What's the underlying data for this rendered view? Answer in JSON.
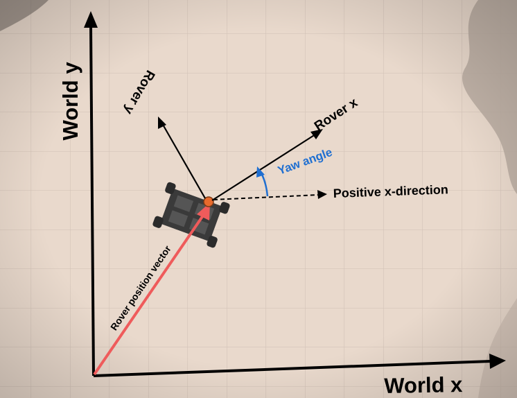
{
  "axes": {
    "world_x_label": "World x",
    "world_y_label": "World y"
  },
  "rover_frame": {
    "x_label": "Rover x",
    "y_label": "Rover y"
  },
  "annotations": {
    "yaw_angle": "Yaw angle",
    "positive_x_direction": "Positive x-direction",
    "position_vector": "Rover position vector"
  },
  "colors": {
    "ground": "#e9d9cc",
    "grid": "#cdbdb2",
    "axis": "#000000",
    "position_vector": "#ef5b5b",
    "yaw": "#1f6fd1",
    "rock": "#b7a79d"
  },
  "icons": [
    "rover-icon"
  ]
}
